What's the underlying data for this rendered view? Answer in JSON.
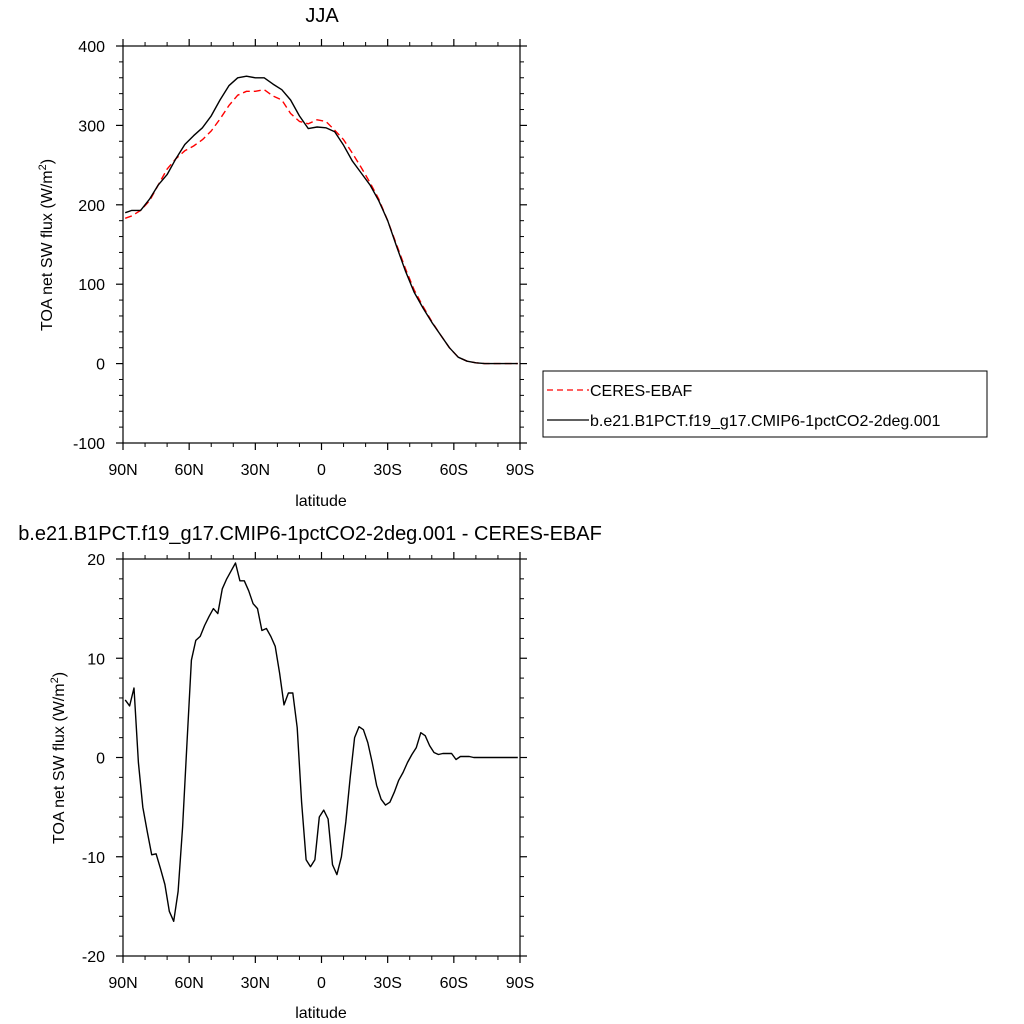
{
  "chart_data": [
    {
      "type": "line",
      "title": "JJA",
      "xlabel": "latitude",
      "ylabel": "TOA net SW flux (W/m²)",
      "xlim": [
        90,
        -90
      ],
      "ylim": [
        -100,
        400
      ],
      "xticks": [
        90,
        60,
        30,
        0,
        -30,
        -60,
        -90
      ],
      "xticklabels": [
        "90N",
        "60N",
        "30N",
        "0",
        "30S",
        "60S",
        "90S"
      ],
      "yticks": [
        -100,
        0,
        100,
        200,
        300,
        400
      ],
      "yticklabels": [
        "-100",
        "0",
        "100",
        "200",
        "300",
        "400"
      ],
      "legend": "right",
      "series": [
        {
          "name": "CERES-EBAF",
          "color": "#ff0000",
          "dash": "dashed",
          "x": [
            89,
            86,
            82,
            78,
            74,
            70,
            66,
            62,
            58,
            54,
            50,
            46,
            42,
            38,
            34,
            30,
            26,
            22,
            18,
            14,
            10,
            6,
            2,
            -2,
            -6,
            -10,
            -14,
            -18,
            -22,
            -26,
            -30,
            -34,
            -38,
            -42,
            -46,
            -50,
            -54,
            -58,
            -62,
            -66,
            -70,
            -74,
            -78,
            -82,
            -86,
            -89
          ],
          "y": [
            183,
            186,
            193,
            205,
            225,
            245,
            258,
            268,
            274,
            282,
            293,
            308,
            325,
            338,
            343,
            343,
            345,
            337,
            332,
            315,
            305,
            302,
            307,
            305,
            294,
            282,
            265,
            247,
            228,
            207,
            180,
            150,
            120,
            93,
            72,
            53,
            36,
            20,
            8,
            3,
            1,
            0,
            0,
            0,
            0,
            0
          ]
        },
        {
          "name": "b.e21.B1PCT.f19_g17.CMIP6-1pctCO2-2deg.001",
          "color": "#000000",
          "dash": "solid",
          "x": [
            89,
            86,
            82,
            78,
            74,
            70,
            66,
            62,
            58,
            54,
            50,
            46,
            42,
            38,
            34,
            30,
            26,
            22,
            18,
            14,
            10,
            6,
            2,
            -2,
            -6,
            -10,
            -14,
            -18,
            -22,
            -26,
            -30,
            -34,
            -38,
            -42,
            -46,
            -50,
            -54,
            -58,
            -62,
            -66,
            -70,
            -74,
            -78,
            -82,
            -86,
            -89
          ],
          "y": [
            190,
            193,
            193,
            207,
            225,
            238,
            258,
            276,
            287,
            297,
            312,
            332,
            350,
            360,
            362,
            360,
            360,
            352,
            345,
            332,
            312,
            296,
            298,
            297,
            292,
            275,
            255,
            240,
            225,
            205,
            180,
            148,
            117,
            90,
            70,
            52,
            36,
            20,
            8,
            3,
            1,
            0,
            0,
            0,
            0,
            0
          ]
        }
      ]
    },
    {
      "type": "line",
      "title": "b.e21.B1PCT.f19_g17.CMIP6-1pctCO2-2deg.001 - CERES-EBAF",
      "xlabel": "latitude",
      "ylabel": "TOA net SW flux (W/m²)",
      "xlim": [
        90,
        -90
      ],
      "ylim": [
        -20,
        20
      ],
      "xticks": [
        90,
        60,
        30,
        0,
        -30,
        -60,
        -90
      ],
      "xticklabels": [
        "90N",
        "60N",
        "30N",
        "0",
        "30S",
        "60S",
        "90S"
      ],
      "yticks": [
        -20,
        -10,
        0,
        10,
        20
      ],
      "yticklabels": [
        "-20",
        "-10",
        "0",
        "10",
        "20"
      ],
      "series": [
        {
          "color": "#000000",
          "dash": "solid",
          "x": [
            89,
            87,
            85,
            83,
            81,
            79,
            77,
            75,
            73,
            71,
            69,
            67,
            65,
            63,
            61,
            59,
            57,
            55,
            53,
            51,
            49,
            47,
            45,
            43,
            41,
            39,
            37,
            35,
            33,
            31,
            29,
            27,
            25,
            23,
            21,
            19,
            17,
            15,
            13,
            11,
            9,
            7,
            5,
            3,
            1,
            -1,
            -3,
            -5,
            -7,
            -9,
            -11,
            -13,
            -15,
            -17,
            -19,
            -21,
            -23,
            -25,
            -27,
            -29,
            -31,
            -33,
            -35,
            -37,
            -39,
            -41,
            -43,
            -45,
            -47,
            -49,
            -51,
            -53,
            -55,
            -57,
            -59,
            -61,
            -63,
            -65,
            -67,
            -69,
            -71,
            -73,
            -75,
            -77,
            -79,
            -81,
            -83,
            -85,
            -87,
            -89
          ],
          "y": [
            5.8,
            5.2,
            7.0,
            -0.5,
            -5.0,
            -7.5,
            -9.8,
            -9.7,
            -11.2,
            -12.8,
            -15.5,
            -16.5,
            -13.5,
            -7.0,
            1.5,
            9.8,
            11.8,
            12.2,
            13.3,
            14.2,
            15.0,
            14.5,
            17.0,
            18.0,
            18.8,
            19.6,
            17.8,
            17.8,
            16.8,
            15.5,
            15.0,
            12.8,
            13.0,
            12.2,
            11.2,
            8.5,
            5.3,
            6.5,
            6.5,
            3.0,
            -4.5,
            -10.3,
            -11.0,
            -10.3,
            -6.0,
            -5.3,
            -6.2,
            -10.8,
            -11.8,
            -10.0,
            -6.5,
            -2.0,
            2.0,
            3.1,
            2.8,
            1.5,
            -0.5,
            -2.8,
            -4.2,
            -4.8,
            -4.5,
            -3.5,
            -2.3,
            -1.5,
            -0.5,
            0.3,
            1.0,
            2.5,
            2.2,
            1.2,
            0.5,
            0.3,
            0.4,
            0.4,
            0.4,
            -0.2,
            0.1,
            0.1,
            0.1,
            0.0,
            0.0,
            0.0,
            0.0,
            0.0,
            0.0,
            0.0,
            0.0,
            0.0,
            0.0,
            0.0
          ]
        }
      ]
    }
  ]
}
